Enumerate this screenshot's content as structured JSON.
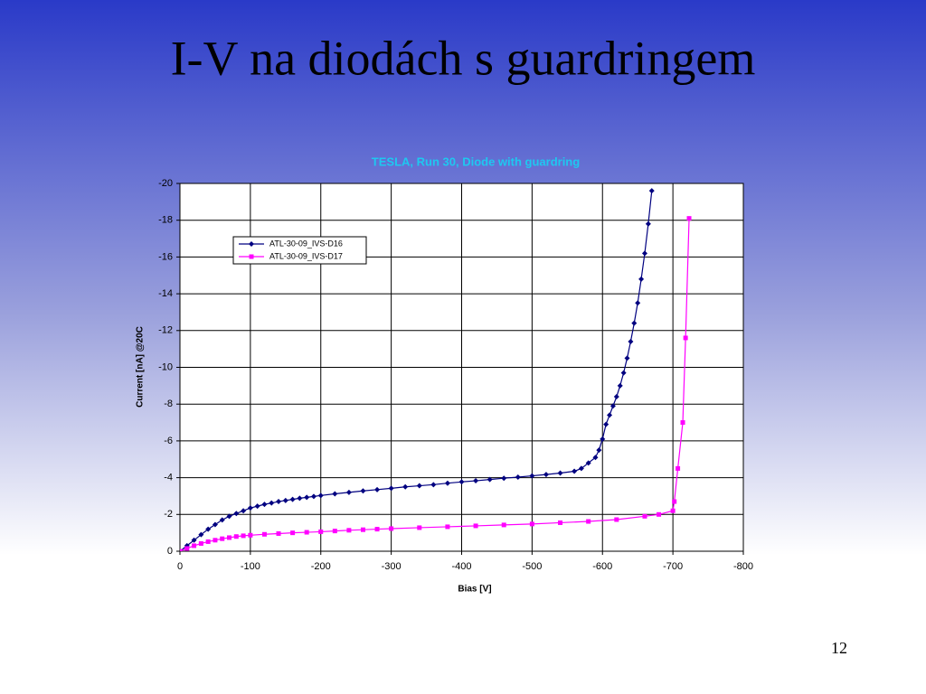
{
  "slide_title": "I-V na diodách s guardringem",
  "page_number": "12",
  "chart_data": {
    "type": "line",
    "title": "TESLA, Run 30, Diode with guardring",
    "x_label": "Bias [V]",
    "y_label": "Current [nA] @20C",
    "xlim": [
      0,
      -800
    ],
    "ylim": [
      0,
      -20
    ],
    "xticks": [
      0,
      -100,
      -200,
      -300,
      -400,
      -500,
      -600,
      -700,
      -800
    ],
    "yticks": [
      0,
      -2,
      -4,
      -6,
      -8,
      -10,
      -12,
      -14,
      -16,
      -18,
      -20
    ],
    "grid": true,
    "legend": "upper-left",
    "series": [
      {
        "name": "ATL-30-09_IVS-D16",
        "color": "#000080",
        "marker": "diamond",
        "x": [
          0,
          -10,
          -20,
          -30,
          -40,
          -50,
          -60,
          -70,
          -80,
          -90,
          -100,
          -110,
          -120,
          -130,
          -140,
          -150,
          -160,
          -170,
          -180,
          -190,
          -200,
          -220,
          -240,
          -260,
          -280,
          -300,
          -320,
          -340,
          -360,
          -380,
          -400,
          -420,
          -440,
          -460,
          -480,
          -500,
          -520,
          -540,
          -560,
          -570,
          -580,
          -590,
          -595,
          -600,
          -605,
          -610,
          -615,
          -620,
          -625,
          -630,
          -635,
          -640,
          -645,
          -650,
          -655,
          -660,
          -665,
          -670
        ],
        "values": [
          0,
          -0.3,
          -0.6,
          -0.9,
          -1.2,
          -1.45,
          -1.7,
          -1.9,
          -2.05,
          -2.2,
          -2.35,
          -2.45,
          -2.55,
          -2.62,
          -2.7,
          -2.76,
          -2.82,
          -2.88,
          -2.93,
          -2.98,
          -3.03,
          -3.12,
          -3.2,
          -3.28,
          -3.35,
          -3.42,
          -3.5,
          -3.56,
          -3.62,
          -3.7,
          -3.77,
          -3.83,
          -3.9,
          -3.97,
          -4.03,
          -4.1,
          -4.17,
          -4.25,
          -4.35,
          -4.5,
          -4.8,
          -5.1,
          -5.5,
          -6.1,
          -6.9,
          -7.4,
          -7.9,
          -8.4,
          -9,
          -9.7,
          -10.5,
          -11.4,
          -12.4,
          -13.5,
          -14.8,
          -16.2,
          -17.8,
          -19.6
        ]
      },
      {
        "name": "ATL-30-09_IVS-D17",
        "color": "#ff00ff",
        "marker": "square",
        "x": [
          0,
          -10,
          -20,
          -30,
          -40,
          -50,
          -60,
          -70,
          -80,
          -90,
          -100,
          -120,
          -140,
          -160,
          -180,
          -200,
          -220,
          -240,
          -260,
          -280,
          -300,
          -340,
          -380,
          -420,
          -460,
          -500,
          -540,
          -580,
          -620,
          -660,
          -680,
          -700,
          -702,
          -707,
          -714,
          -718,
          -723
        ],
        "values": [
          0,
          -0.15,
          -0.3,
          -0.42,
          -0.52,
          -0.6,
          -0.68,
          -0.74,
          -0.8,
          -0.84,
          -0.87,
          -0.92,
          -0.96,
          -1.0,
          -1.03,
          -1.06,
          -1.1,
          -1.14,
          -1.17,
          -1.2,
          -1.23,
          -1.28,
          -1.33,
          -1.38,
          -1.43,
          -1.48,
          -1.55,
          -1.62,
          -1.72,
          -1.9,
          -2.0,
          -2.2,
          -2.7,
          -4.5,
          -7.0,
          -11.6,
          -18.1
        ]
      }
    ]
  }
}
